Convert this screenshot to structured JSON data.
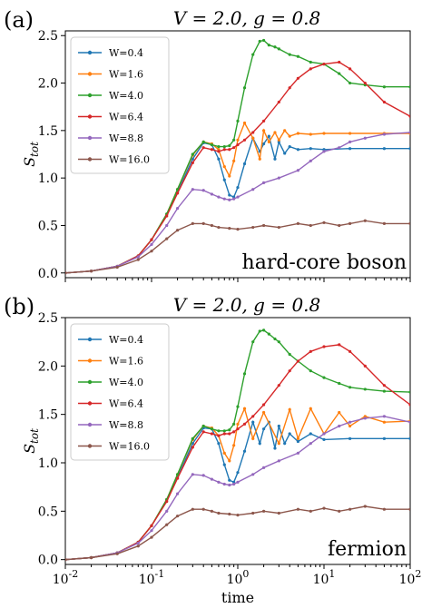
{
  "chart_data": [
    {
      "type": "line",
      "panel_label": "(a)",
      "title": "V = 2.0, g = 0.8",
      "annotation": "hard-core boson",
      "ylabel": "S_tot",
      "xlabel": "",
      "xscale": "log",
      "xlim": [
        0.01,
        100
      ],
      "ylim": [
        -0.05,
        2.55
      ],
      "yticks": [
        "0.0",
        "0.5",
        "1.0",
        "1.5",
        "2.0",
        "2.5"
      ],
      "legend_position": "upper-left",
      "series": [
        {
          "name": "W=0.4",
          "color": "#1f77b4",
          "x": [
            0.01,
            0.02,
            0.04,
            0.07,
            0.1,
            0.15,
            0.2,
            0.3,
            0.4,
            0.5,
            0.6,
            0.7,
            0.8,
            0.9,
            1.0,
            1.2,
            1.5,
            1.8,
            2.0,
            2.3,
            2.7,
            3.0,
            3.5,
            4.0,
            5,
            7,
            10,
            20,
            50,
            100
          ],
          "y": [
            0.0,
            0.02,
            0.07,
            0.18,
            0.35,
            0.62,
            0.85,
            1.2,
            1.37,
            1.35,
            1.2,
            0.98,
            0.82,
            0.8,
            0.9,
            1.15,
            1.42,
            1.28,
            1.36,
            1.44,
            1.2,
            1.38,
            1.26,
            1.33,
            1.3,
            1.31,
            1.3,
            1.31,
            1.31,
            1.31
          ]
        },
        {
          "name": "W=1.6",
          "color": "#ff7f0e",
          "x": [
            0.01,
            0.02,
            0.04,
            0.07,
            0.1,
            0.15,
            0.2,
            0.3,
            0.4,
            0.5,
            0.6,
            0.7,
            0.8,
            0.9,
            1.0,
            1.2,
            1.5,
            1.8,
            2.0,
            2.3,
            2.7,
            3.0,
            3.5,
            4.0,
            5,
            7,
            10,
            20,
            50,
            100
          ],
          "y": [
            0.0,
            0.02,
            0.07,
            0.18,
            0.35,
            0.62,
            0.88,
            1.24,
            1.38,
            1.36,
            1.3,
            1.12,
            1.02,
            1.18,
            1.4,
            1.58,
            1.42,
            1.2,
            1.5,
            1.38,
            1.48,
            1.4,
            1.5,
            1.44,
            1.47,
            1.46,
            1.47,
            1.47,
            1.47,
            1.47
          ]
        },
        {
          "name": "W=4.0",
          "color": "#2ca02c",
          "x": [
            0.01,
            0.02,
            0.04,
            0.07,
            0.1,
            0.15,
            0.2,
            0.3,
            0.4,
            0.5,
            0.6,
            0.7,
            0.8,
            0.9,
            1.0,
            1.2,
            1.5,
            1.8,
            2.0,
            2.3,
            2.7,
            3.0,
            4.0,
            5,
            7,
            10,
            15,
            20,
            30,
            50,
            100
          ],
          "y": [
            0.0,
            0.02,
            0.07,
            0.18,
            0.35,
            0.62,
            0.88,
            1.25,
            1.38,
            1.35,
            1.33,
            1.33,
            1.34,
            1.4,
            1.6,
            1.95,
            2.3,
            2.44,
            2.45,
            2.4,
            2.38,
            2.36,
            2.3,
            2.28,
            2.22,
            2.2,
            2.1,
            2.0,
            1.98,
            1.96,
            1.96
          ]
        },
        {
          "name": "W=6.4",
          "color": "#d62728",
          "x": [
            0.01,
            0.02,
            0.04,
            0.07,
            0.1,
            0.15,
            0.2,
            0.3,
            0.4,
            0.5,
            0.6,
            0.7,
            0.8,
            0.9,
            1.0,
            1.2,
            1.5,
            2.0,
            3.0,
            4.0,
            5,
            7,
            10,
            15,
            20,
            30,
            50,
            100
          ],
          "y": [
            0.0,
            0.02,
            0.07,
            0.18,
            0.35,
            0.6,
            0.84,
            1.16,
            1.32,
            1.3,
            1.28,
            1.3,
            1.3,
            1.32,
            1.35,
            1.4,
            1.48,
            1.6,
            1.8,
            1.95,
            2.05,
            2.15,
            2.2,
            2.22,
            2.15,
            2.0,
            1.8,
            1.65
          ]
        },
        {
          "name": "W=8.8",
          "color": "#9467bd",
          "x": [
            0.01,
            0.02,
            0.04,
            0.07,
            0.1,
            0.15,
            0.2,
            0.3,
            0.4,
            0.5,
            0.6,
            0.7,
            0.8,
            0.9,
            1.0,
            1.5,
            2.0,
            3.0,
            5,
            7,
            10,
            15,
            20,
            30,
            50,
            100
          ],
          "y": [
            0.0,
            0.02,
            0.07,
            0.17,
            0.3,
            0.5,
            0.68,
            0.88,
            0.87,
            0.83,
            0.8,
            0.78,
            0.77,
            0.78,
            0.8,
            0.88,
            0.95,
            1.0,
            1.08,
            1.18,
            1.28,
            1.32,
            1.38,
            1.42,
            1.46,
            1.48
          ]
        },
        {
          "name": "W=16.0",
          "color": "#8c564b",
          "x": [
            0.01,
            0.02,
            0.04,
            0.07,
            0.1,
            0.15,
            0.2,
            0.3,
            0.4,
            0.5,
            0.6,
            0.8,
            1.0,
            1.5,
            2.0,
            3.0,
            5,
            7,
            10,
            15,
            20,
            30,
            50,
            100
          ],
          "y": [
            0.0,
            0.02,
            0.06,
            0.14,
            0.23,
            0.36,
            0.45,
            0.52,
            0.52,
            0.5,
            0.48,
            0.47,
            0.46,
            0.48,
            0.5,
            0.48,
            0.52,
            0.5,
            0.53,
            0.5,
            0.52,
            0.55,
            0.52,
            0.52
          ]
        }
      ]
    },
    {
      "type": "line",
      "panel_label": "(b)",
      "title": "V = 2.0, g = 0.8",
      "annotation": "fermion",
      "ylabel": "S_tot",
      "xlabel": "time",
      "xscale": "log",
      "xlim": [
        0.01,
        100
      ],
      "ylim": [
        -0.05,
        2.5
      ],
      "xticks": [
        "10",
        "10",
        "10",
        "10",
        "10"
      ],
      "xtick_exponents": [
        "-2",
        "-1",
        "0",
        "1",
        "2"
      ],
      "yticks": [
        "0.0",
        "0.5",
        "1.0",
        "1.5",
        "2.0",
        "2.5"
      ],
      "legend_position": "upper-left",
      "series": [
        {
          "name": "W=0.4",
          "color": "#1f77b4",
          "x": [
            0.01,
            0.02,
            0.04,
            0.07,
            0.1,
            0.15,
            0.2,
            0.3,
            0.4,
            0.5,
            0.6,
            0.7,
            0.8,
            0.9,
            1.0,
            1.2,
            1.5,
            1.8,
            2.0,
            2.3,
            2.7,
            3.0,
            3.5,
            4.0,
            5,
            7,
            10,
            20,
            50,
            100
          ],
          "y": [
            0.0,
            0.02,
            0.07,
            0.18,
            0.35,
            0.62,
            0.85,
            1.2,
            1.36,
            1.35,
            1.2,
            0.98,
            0.82,
            0.8,
            0.9,
            1.12,
            1.42,
            1.2,
            1.35,
            1.42,
            1.15,
            1.38,
            1.2,
            1.3,
            1.22,
            1.3,
            1.24,
            1.25,
            1.25,
            1.25
          ]
        },
        {
          "name": "W=1.6",
          "color": "#ff7f0e",
          "x": [
            0.01,
            0.02,
            0.04,
            0.07,
            0.1,
            0.15,
            0.2,
            0.3,
            0.4,
            0.5,
            0.6,
            0.7,
            0.8,
            0.9,
            1.0,
            1.2,
            1.5,
            2.0,
            3.0,
            4.0,
            5,
            7,
            10,
            15,
            20,
            30,
            50,
            100
          ],
          "y": [
            0.0,
            0.02,
            0.07,
            0.18,
            0.35,
            0.62,
            0.88,
            1.24,
            1.38,
            1.36,
            1.28,
            1.1,
            1.02,
            1.18,
            1.4,
            1.56,
            1.25,
            1.52,
            1.2,
            1.55,
            1.25,
            1.56,
            1.3,
            1.52,
            1.38,
            1.48,
            1.42,
            1.43
          ]
        },
        {
          "name": "W=4.0",
          "color": "#2ca02c",
          "x": [
            0.01,
            0.02,
            0.04,
            0.07,
            0.1,
            0.15,
            0.2,
            0.3,
            0.4,
            0.5,
            0.6,
            0.7,
            0.8,
            0.9,
            1.0,
            1.2,
            1.5,
            1.8,
            2.0,
            2.3,
            2.7,
            3.0,
            4.0,
            5,
            7,
            10,
            15,
            20,
            30,
            50,
            100
          ],
          "y": [
            0.0,
            0.02,
            0.07,
            0.18,
            0.35,
            0.62,
            0.88,
            1.25,
            1.38,
            1.35,
            1.33,
            1.33,
            1.34,
            1.4,
            1.58,
            1.92,
            2.25,
            2.36,
            2.37,
            2.33,
            2.28,
            2.25,
            2.12,
            2.05,
            1.95,
            1.88,
            1.82,
            1.78,
            1.76,
            1.74,
            1.73
          ]
        },
        {
          "name": "W=6.4",
          "color": "#d62728",
          "x": [
            0.01,
            0.02,
            0.04,
            0.07,
            0.1,
            0.15,
            0.2,
            0.3,
            0.4,
            0.5,
            0.6,
            0.7,
            0.8,
            0.9,
            1.0,
            1.2,
            1.5,
            2.0,
            3.0,
            4.0,
            5,
            7,
            10,
            15,
            20,
            30,
            50,
            100
          ],
          "y": [
            0.0,
            0.02,
            0.07,
            0.18,
            0.35,
            0.6,
            0.84,
            1.16,
            1.32,
            1.3,
            1.28,
            1.3,
            1.3,
            1.32,
            1.35,
            1.4,
            1.48,
            1.6,
            1.8,
            1.95,
            2.05,
            2.15,
            2.2,
            2.22,
            2.15,
            2.0,
            1.8,
            1.6
          ]
        },
        {
          "name": "W=8.8",
          "color": "#9467bd",
          "x": [
            0.01,
            0.02,
            0.04,
            0.07,
            0.1,
            0.15,
            0.2,
            0.3,
            0.4,
            0.5,
            0.6,
            0.7,
            0.8,
            0.9,
            1.0,
            1.5,
            2.0,
            3.0,
            5,
            7,
            10,
            15,
            20,
            30,
            50,
            100
          ],
          "y": [
            0.0,
            0.02,
            0.07,
            0.17,
            0.3,
            0.5,
            0.68,
            0.88,
            0.87,
            0.83,
            0.8,
            0.78,
            0.77,
            0.78,
            0.8,
            0.88,
            0.95,
            1.02,
            1.1,
            1.2,
            1.3,
            1.38,
            1.42,
            1.46,
            1.48,
            1.42
          ]
        },
        {
          "name": "W=16.0",
          "color": "#8c564b",
          "x": [
            0.01,
            0.02,
            0.04,
            0.07,
            0.1,
            0.15,
            0.2,
            0.3,
            0.4,
            0.5,
            0.6,
            0.8,
            1.0,
            1.5,
            2.0,
            3.0,
            5,
            7,
            10,
            15,
            20,
            30,
            50,
            100
          ],
          "y": [
            0.0,
            0.02,
            0.06,
            0.14,
            0.23,
            0.36,
            0.45,
            0.52,
            0.52,
            0.5,
            0.48,
            0.47,
            0.46,
            0.48,
            0.5,
            0.48,
            0.52,
            0.5,
            0.53,
            0.5,
            0.52,
            0.55,
            0.52,
            0.52
          ]
        }
      ]
    }
  ]
}
